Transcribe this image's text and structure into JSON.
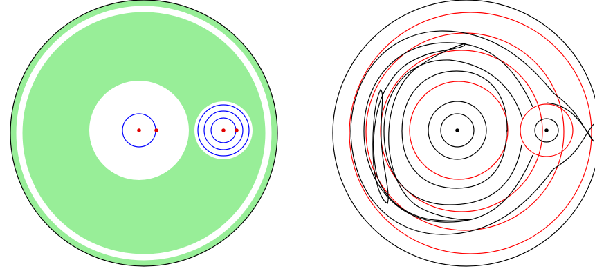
{
  "colors": {
    "background": "#ffffff",
    "fill_region": "#98ee98",
    "outline": "#000000",
    "blue_curve": "#0000ff",
    "red_curve": "#ff0000",
    "point_red": "#e00000",
    "point_black": "#000000"
  },
  "left_panel": {
    "shapes": [
      "outer-disk",
      "annular-gap",
      "large-hole",
      "small-hole",
      "blue-circles",
      "red-points"
    ]
  },
  "right_panel": {
    "shapes": [
      "outer-boundary",
      "red-level-curves",
      "black-level-curves",
      "center-points"
    ]
  }
}
